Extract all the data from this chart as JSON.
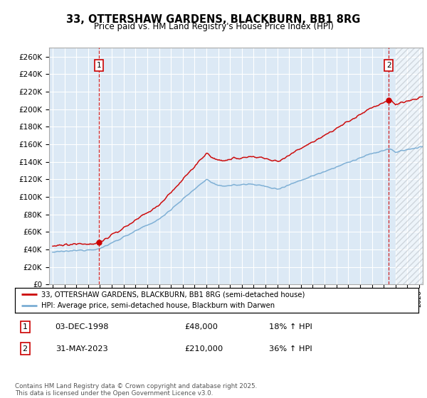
{
  "title": "33, OTTERSHAW GARDENS, BLACKBURN, BB1 8RG",
  "subtitle": "Price paid vs. HM Land Registry's House Price Index (HPI)",
  "red_label": "33, OTTERSHAW GARDENS, BLACKBURN, BB1 8RG (semi-detached house)",
  "blue_label": "HPI: Average price, semi-detached house, Blackburn with Darwen",
  "annotation1_date": "03-DEC-1998",
  "annotation1_price": 48000,
  "annotation1_price_str": "£48,000",
  "annotation1_hpi": "18% ↑ HPI",
  "annotation2_date": "31-MAY-2023",
  "annotation2_price": 210000,
  "annotation2_price_str": "£210,000",
  "annotation2_hpi": "36% ↑ HPI",
  "footer": "Contains HM Land Registry data © Crown copyright and database right 2025.\nThis data is licensed under the Open Government Licence v3.0.",
  "ylim": [
    0,
    270000
  ],
  "ytick_step": 20000,
  "plot_bg": "#dce9f5",
  "red_color": "#cc0000",
  "blue_color": "#7aadd4",
  "vline_color": "#cc0000",
  "grid_color": "#ffffff",
  "annotation_box_color": "#cc0000",
  "sale1_year": 1998.917,
  "sale2_year": 2023.417,
  "sale1_price": 48000,
  "sale2_price": 210000,
  "hpi1_price": 40678,
  "hpi2_price": 154412,
  "future_start": 2024.0,
  "xmin": 1994.7,
  "xmax": 2026.3
}
